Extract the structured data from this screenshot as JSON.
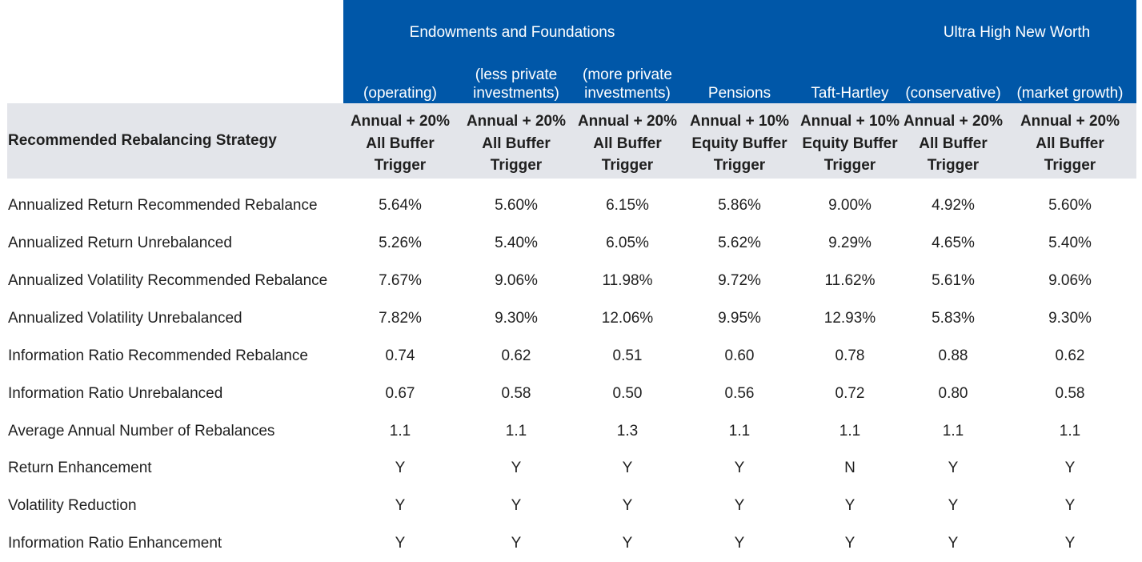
{
  "groups": [
    {
      "label": "Endowments and Foundations"
    },
    {
      "label": "Ultra High New Worth"
    }
  ],
  "columns": [
    {
      "label": "(operating)",
      "strategy": "Annual + 20%\nAll Buffer\nTrigger"
    },
    {
      "label": "(less private\ninvestments)",
      "strategy": "Annual + 20%\nAll Buffer\nTrigger"
    },
    {
      "label": "(more private\ninvestments)",
      "strategy": "Annual + 20%\nAll Buffer\nTrigger"
    },
    {
      "label": "Pensions",
      "strategy": "Annual + 10%\nEquity Buffer\nTrigger"
    },
    {
      "label": "Taft-Hartley",
      "strategy": "Annual + 10%\nEquity Buffer\nTrigger"
    },
    {
      "label": "(conservative)",
      "strategy": "Annual + 20%\nAll Buffer\nTrigger"
    },
    {
      "label": "(market growth)",
      "strategy": "Annual + 20%\nAll Buffer\nTrigger"
    }
  ],
  "strategy_label": "Recommended Rebalancing Strategy",
  "rows": [
    {
      "label": "Annualized Return Recommended Rebalance",
      "values": [
        "5.64%",
        "5.60%",
        "6.15%",
        "5.86%",
        "9.00%",
        "4.92%",
        "5.60%"
      ]
    },
    {
      "label": "Annualized Return Unrebalanced",
      "values": [
        "5.26%",
        "5.40%",
        "6.05%",
        "5.62%",
        "9.29%",
        "4.65%",
        "5.40%"
      ]
    },
    {
      "label": "Annualized Volatility Recommended Rebalance",
      "values": [
        "7.67%",
        "9.06%",
        "11.98%",
        "9.72%",
        "11.62%",
        "5.61%",
        "9.06%"
      ]
    },
    {
      "label": "Annualized Volatility Unrebalanced",
      "values": [
        "7.82%",
        "9.30%",
        "12.06%",
        "9.95%",
        "12.93%",
        "5.83%",
        "9.30%"
      ]
    },
    {
      "label": "Information Ratio Recommended Rebalance",
      "values": [
        "0.74",
        "0.62",
        "0.51",
        "0.60",
        "0.78",
        "0.88",
        "0.62"
      ]
    },
    {
      "label": "Information Ratio Unrebalanced",
      "values": [
        "0.67",
        "0.58",
        "0.50",
        "0.56",
        "0.72",
        "0.80",
        "0.58"
      ]
    },
    {
      "label": "Average Annual Number of Rebalances",
      "values": [
        "1.1",
        "1.1",
        "1.3",
        "1.1",
        "1.1",
        "1.1",
        "1.1"
      ]
    },
    {
      "label": "Return Enhancement",
      "values": [
        "Y",
        "Y",
        "Y",
        "Y",
        "N",
        "Y",
        "Y"
      ]
    },
    {
      "label": "Volatility Reduction",
      "values": [
        "Y",
        "Y",
        "Y",
        "Y",
        "Y",
        "Y",
        "Y"
      ]
    },
    {
      "label": "Information Ratio Enhancement",
      "values": [
        "Y",
        "Y",
        "Y",
        "Y",
        "Y",
        "Y",
        "Y"
      ]
    }
  ]
}
